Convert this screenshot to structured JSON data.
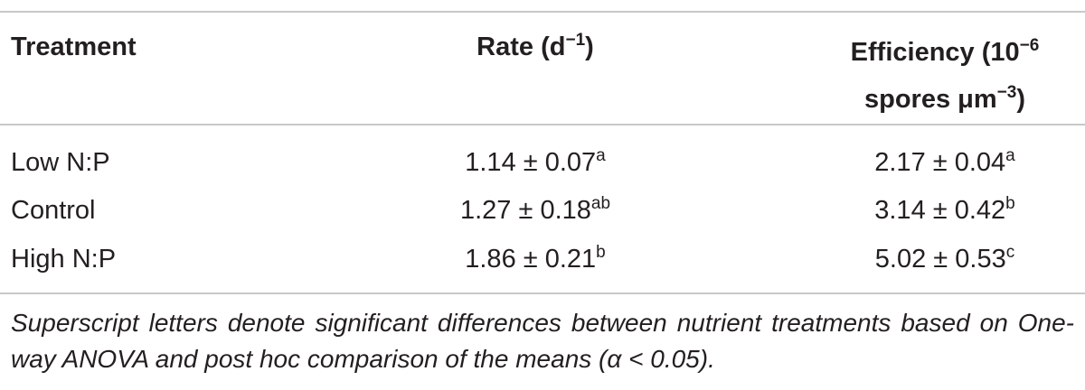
{
  "table": {
    "header": [
      [
        "Treatment"
      ],
      [
        "Rate (d",
        "−1",
        ")"
      ],
      [
        "Efficiency (10",
        "−6",
        "spores μm",
        "−3",
        ")"
      ]
    ],
    "rows": [
      [
        "Low N:P",
        [
          "1.14 ± 0.07",
          "a"
        ],
        [
          "2.17 ± 0.04",
          "a"
        ]
      ],
      [
        "Control",
        [
          "1.27 ± 0.18",
          "ab"
        ],
        [
          "3.14 ± 0.42",
          "b"
        ]
      ],
      [
        "High N:P",
        [
          "1.86 ± 0.21",
          "b"
        ],
        [
          "5.02 ± 0.53",
          "c"
        ]
      ]
    ],
    "footnote": "Superscript letters denote significant differences between nutrient treatments based on One-way ANOVA and post hoc comparison of the means (α < 0.05)."
  }
}
